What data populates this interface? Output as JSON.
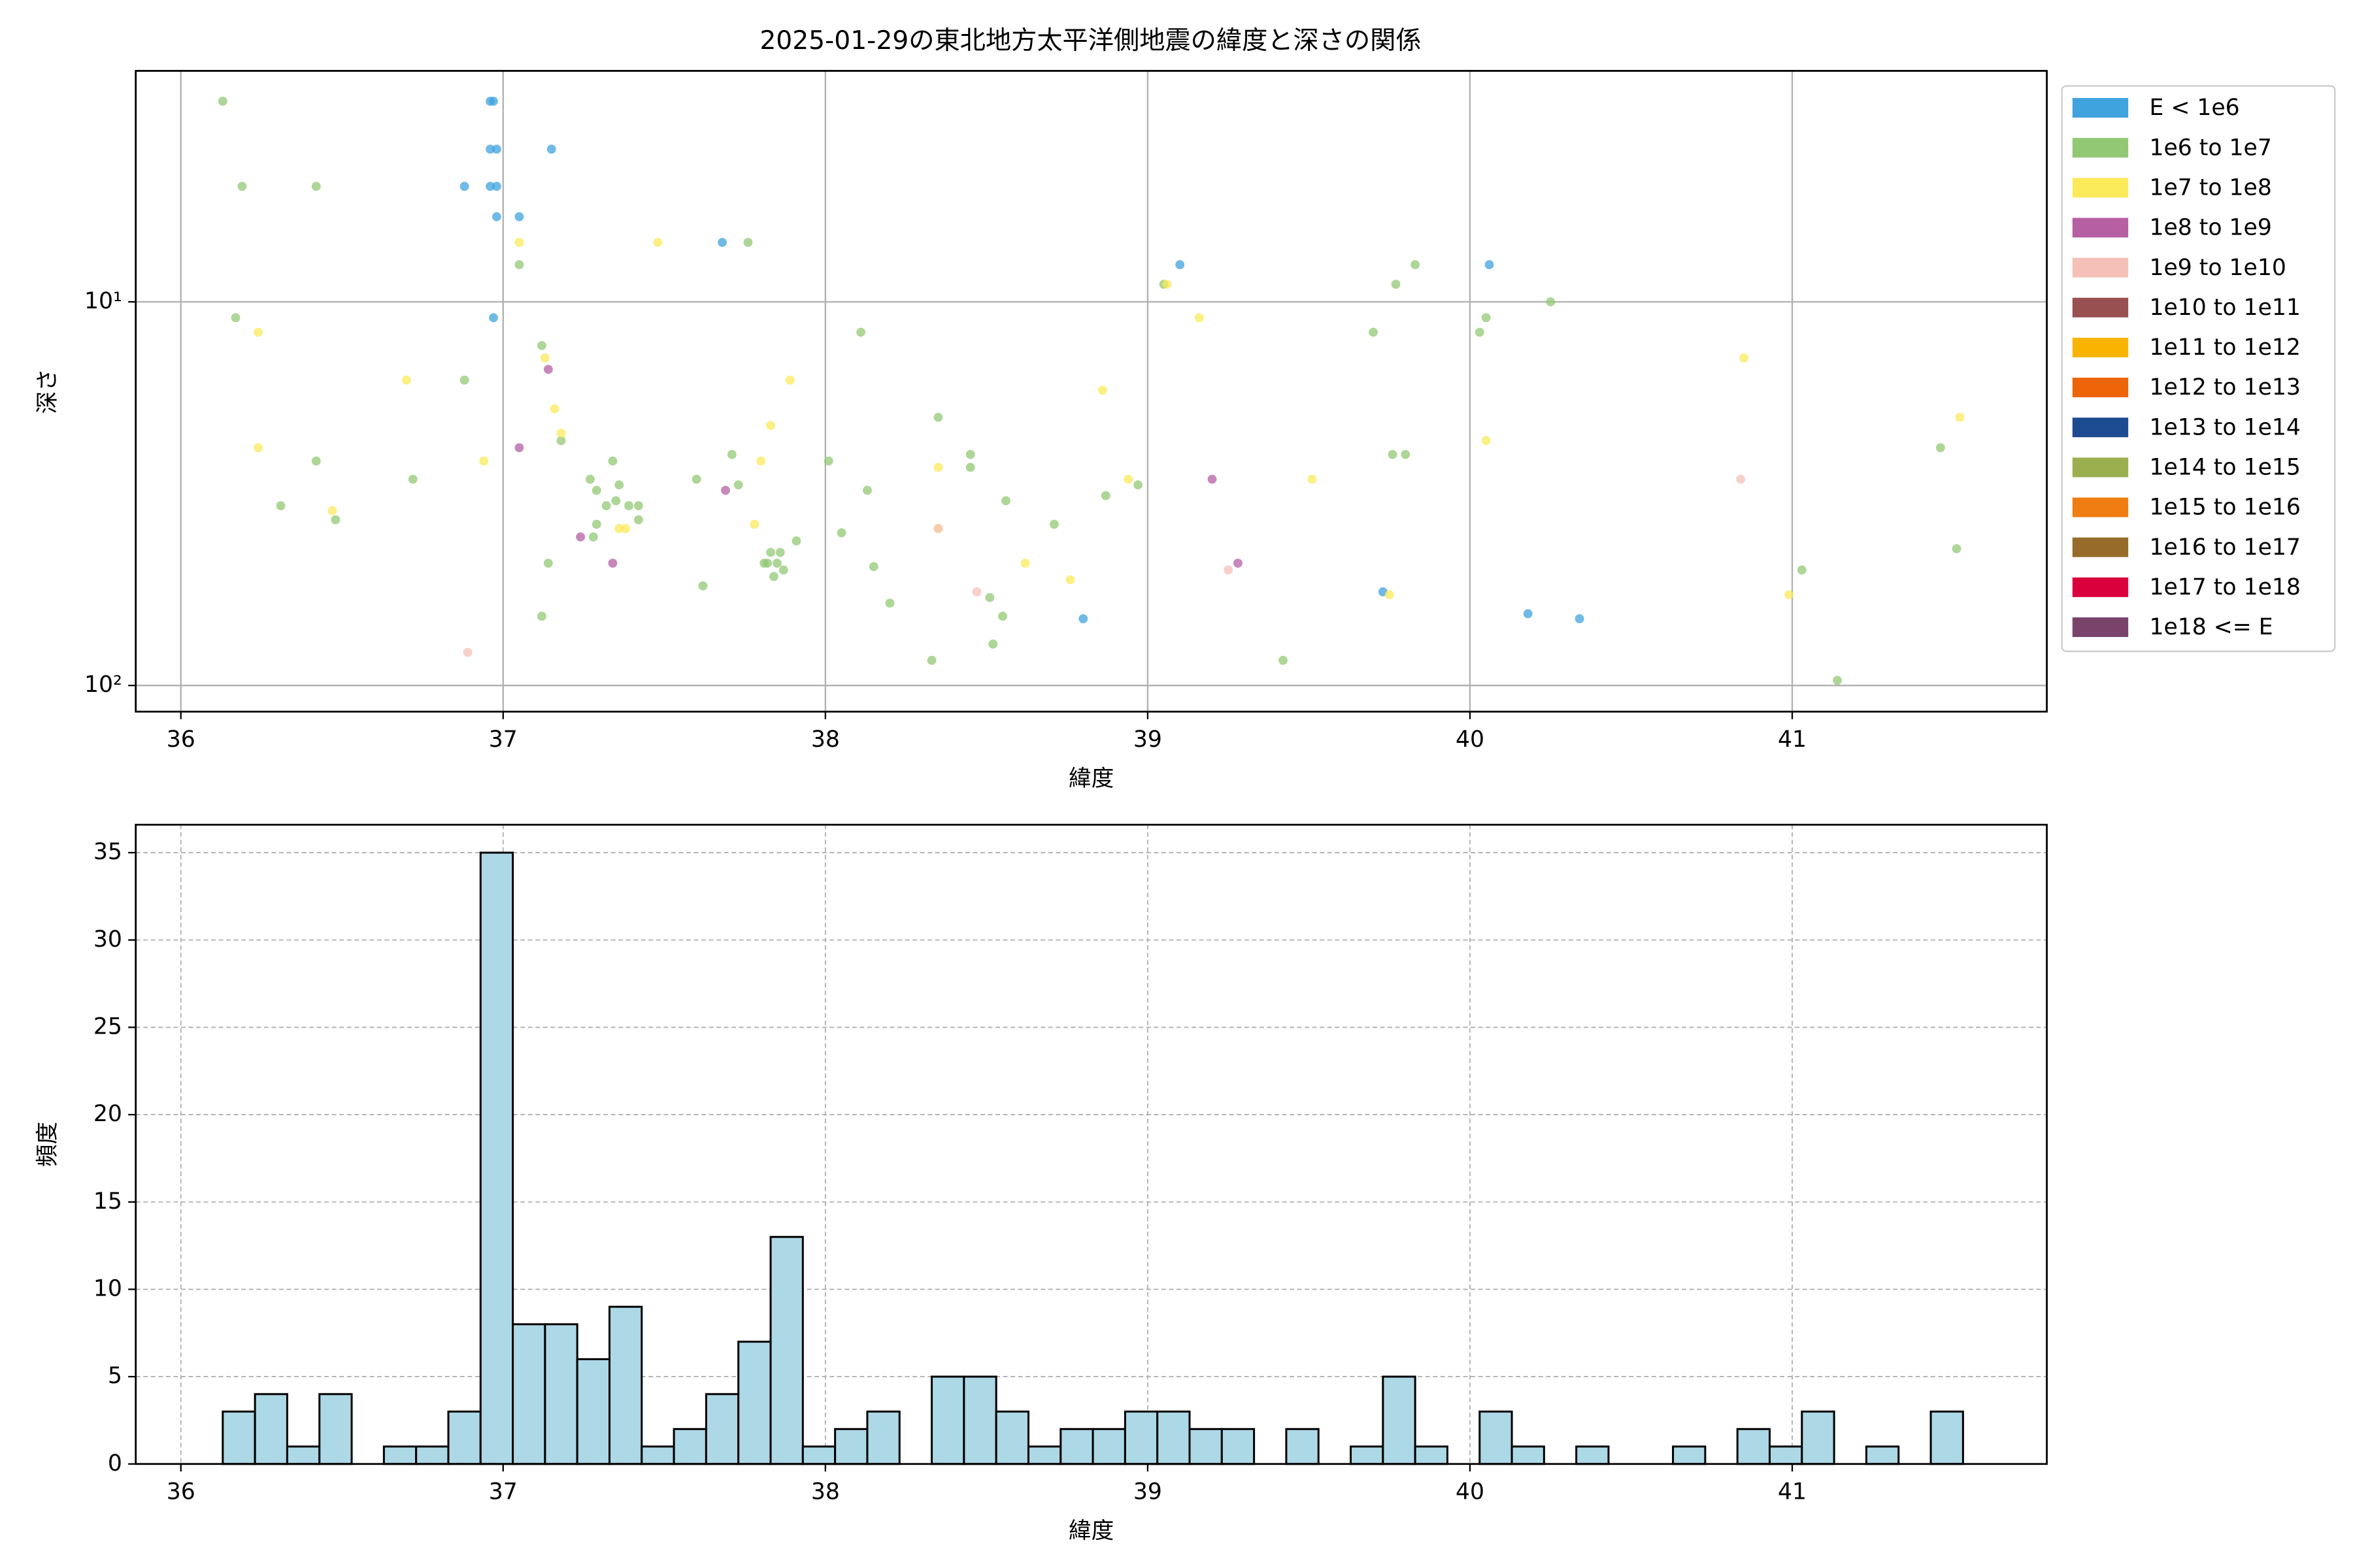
{
  "chart_data": [
    {
      "type": "scatter",
      "title": "2025-01-29の東北地方太平洋側地震の緯度と深さの関係",
      "xlabel": "緯度",
      "ylabel": "深さ",
      "xlim": [
        35.86,
        41.79
      ],
      "xticks": [
        36,
        37,
        38,
        39,
        40,
        41
      ],
      "ylim": [
        117,
        2.5
      ],
      "log_y": true,
      "yticks": [
        {
          "value": 10,
          "label": "10¹"
        },
        {
          "value": 100,
          "label": "10²"
        }
      ],
      "grid": "solid",
      "legend": "outside right",
      "series": [
        {
          "name": "E < 1e6",
          "color": "#3fa3de",
          "x": [
            36.97,
            36.96,
            36.98,
            36.96,
            37.15,
            36.88,
            36.96,
            36.98,
            37.05,
            36.98,
            37.68,
            39.1,
            40.06,
            36.97,
            39.73,
            38.8,
            40.18,
            40.34
          ],
          "values": [
            3,
            3,
            4,
            4,
            4,
            5,
            5,
            5,
            6,
            6,
            7,
            8,
            8,
            11,
            57,
            67,
            65,
            67
          ]
        },
        {
          "name": "1e6 to 1e7",
          "color": "#92c874",
          "x": [
            36.13,
            36.19,
            36.42,
            37.05,
            37.76,
            36.17,
            36.88,
            37.12,
            36.72,
            36.42,
            36.31,
            36.48,
            37.18,
            37.34,
            37.27,
            37.36,
            37.29,
            37.32,
            37.35,
            37.39,
            37.42,
            37.42,
            37.29,
            37.28,
            37.14,
            37.12,
            37.6,
            37.71,
            37.73,
            37.62,
            37.81,
            37.83,
            37.86,
            37.82,
            37.85,
            37.84,
            37.87,
            37.91,
            38.01,
            38.05,
            38.13,
            38.15,
            38.2,
            38.33,
            38.35,
            38.45,
            38.45,
            38.51,
            38.55,
            38.52,
            38.56,
            38.71,
            38.87,
            38.97,
            38.11,
            39.05,
            39.42,
            39.7,
            39.77,
            39.83,
            39.76,
            39.8,
            40.05,
            40.25,
            40.03,
            41.46,
            41.51,
            41.03,
            41.14
          ],
          "values": [
            3,
            5,
            5,
            8,
            7,
            11,
            16,
            13,
            29,
            26,
            34,
            37,
            23,
            26,
            29,
            30,
            31,
            34,
            33,
            34,
            34,
            37,
            38,
            41,
            48,
            66,
            29,
            25,
            30,
            55,
            48,
            45,
            45,
            48,
            48,
            52,
            50,
            42,
            26,
            40,
            31,
            49,
            61,
            86,
            20,
            27,
            25,
            59,
            66,
            78,
            33,
            38,
            32,
            30,
            12,
            9,
            86,
            12,
            9,
            8,
            25,
            25,
            11,
            10,
            12,
            24,
            44,
            50,
            97
          ]
        },
        {
          "name": "1e7 to 1e8",
          "color": "#fbea5a",
          "x": [
            37.05,
            37.48,
            39.06,
            39.16,
            36.24,
            36.7,
            37.13,
            37.16,
            37.18,
            36.24,
            36.47,
            36.94,
            37.36,
            37.38,
            37.8,
            37.83,
            37.89,
            38.35,
            38.35,
            37.78,
            38.62,
            38.76,
            38.86,
            38.94,
            39.51,
            39.75,
            40.05,
            40.85,
            40.99,
            41.52
          ],
          "values": [
            7,
            7,
            9,
            11,
            12,
            16,
            14,
            19,
            22,
            24,
            35,
            26,
            39,
            39,
            26,
            21,
            16,
            27,
            39,
            38,
            48,
            53,
            17,
            29,
            29,
            58,
            23,
            14,
            58,
            20
          ]
        },
        {
          "name": "1e8 to 1e9",
          "color": "#b65fa3",
          "x": [
            37.14,
            37.05,
            37.69,
            37.24,
            37.34,
            39.2,
            39.28
          ],
          "values": [
            15,
            24,
            31,
            41,
            48,
            29,
            48
          ]
        },
        {
          "name": "1e9 to 1e10",
          "color": "#f5c0b8",
          "x": [
            36.89,
            38.47,
            39.25,
            40.84,
            38.35
          ],
          "values": [
            82,
            57,
            50,
            29,
            39
          ]
        },
        {
          "name": "1e10 to 1e11",
          "color": "#985050",
          "x": [],
          "values": []
        },
        {
          "name": "1e11 to 1e12",
          "color": "#f8b400",
          "x": [],
          "values": []
        },
        {
          "name": "1e12 to 1e13",
          "color": "#ed6508",
          "x": [],
          "values": []
        },
        {
          "name": "1e13 to 1e14",
          "color": "#1d4b91",
          "x": [],
          "values": []
        },
        {
          "name": "1e14 to 1e15",
          "color": "#9caf4f",
          "x": [],
          "values": []
        },
        {
          "name": "1e15 to 1e16",
          "color": "#ef7d12",
          "x": [],
          "values": []
        },
        {
          "name": "1e16 to 1e17",
          "color": "#976c2a",
          "x": [],
          "values": []
        },
        {
          "name": "1e17 to 1e18",
          "color": "#d9003b",
          "x": [],
          "values": []
        },
        {
          "name": "1e18 <= E",
          "color": "#7a436c",
          "x": [],
          "values": []
        }
      ]
    },
    {
      "type": "histogram",
      "xlabel": "緯度",
      "ylabel": "頻度",
      "xlim": [
        35.86,
        41.79
      ],
      "xticks": [
        36,
        37,
        38,
        39,
        40,
        41
      ],
      "ylim": [
        0,
        36.6
      ],
      "yticks": [
        0,
        5,
        10,
        15,
        20,
        25,
        30,
        35
      ],
      "grid": "dashed",
      "color": "#add8e6",
      "edgecolor": "#000000",
      "bins": [
        36.13,
        36.23,
        36.33,
        36.43,
        36.53,
        36.63,
        36.73,
        36.83,
        36.93,
        37.03,
        37.13,
        37.23,
        37.33,
        37.43,
        37.53,
        37.63,
        37.73,
        37.83,
        37.93,
        38.03,
        38.13,
        38.23,
        38.33,
        38.43,
        38.53,
        38.63,
        38.73,
        38.83,
        38.93,
        39.03,
        39.13,
        39.23,
        39.33,
        39.43,
        39.53,
        39.63,
        39.73,
        39.83,
        39.93,
        40.03,
        40.13,
        40.23,
        40.33,
        40.43,
        40.53,
        40.63,
        40.73,
        40.83,
        40.93,
        41.03,
        41.13,
        41.23,
        41.33,
        41.43,
        41.53
      ],
      "values": [
        3,
        4,
        1,
        4,
        0,
        1,
        1,
        3,
        35,
        8,
        8,
        6,
        9,
        1,
        2,
        4,
        7,
        13,
        1,
        2,
        3,
        0,
        5,
        5,
        3,
        1,
        2,
        2,
        3,
        3,
        2,
        2,
        0,
        2,
        0,
        1,
        5,
        1,
        0,
        3,
        1,
        0,
        1,
        0,
        0,
        1,
        0,
        2,
        1,
        3,
        0,
        1,
        0,
        3
      ]
    }
  ]
}
